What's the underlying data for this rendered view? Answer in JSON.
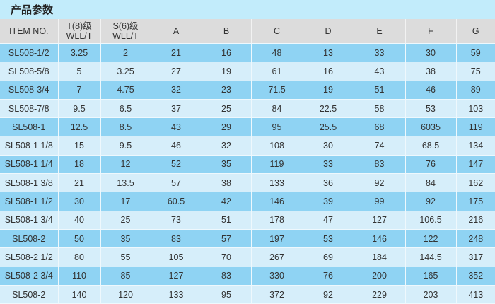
{
  "title": "产品参数",
  "colors": {
    "title_bg": "#c2ecfb",
    "header_bg": "#dcdcdc",
    "row_dark": "#8fd3f3",
    "row_light": "#d6eefa"
  },
  "table": {
    "headers": [
      [
        "ITEM NO."
      ],
      [
        "T(8)级",
        "WLL/T"
      ],
      [
        "S(6)级",
        "WLL/T"
      ],
      [
        "A"
      ],
      [
        "B"
      ],
      [
        "C"
      ],
      [
        "D"
      ],
      [
        "E"
      ],
      [
        "F"
      ],
      [
        "G"
      ]
    ],
    "rows": [
      [
        "SL508-1/2",
        "3.25",
        "2",
        "21",
        "16",
        "48",
        "13",
        "33",
        "30",
        "59"
      ],
      [
        "SL508-5/8",
        "5",
        "3.25",
        "27",
        "19",
        "61",
        "16",
        "43",
        "38",
        "75"
      ],
      [
        "SL508-3/4",
        "7",
        "4.75",
        "32",
        "23",
        "71.5",
        "19",
        "51",
        "46",
        "89"
      ],
      [
        "SL508-7/8",
        "9.5",
        "6.5",
        "37",
        "25",
        "84",
        "22.5",
        "58",
        "53",
        "103"
      ],
      [
        "SL508-1",
        "12.5",
        "8.5",
        "43",
        "29",
        "95",
        "25.5",
        "68",
        "6035",
        "119"
      ],
      [
        "SL508-1 1/8",
        "15",
        "9.5",
        "46",
        "32",
        "108",
        "30",
        "74",
        "68.5",
        "134"
      ],
      [
        "SL508-1 1/4",
        "18",
        "12",
        "52",
        "35",
        "119",
        "33",
        "83",
        "76",
        "147"
      ],
      [
        "SL508-1 3/8",
        "21",
        "13.5",
        "57",
        "38",
        "133",
        "36",
        "92",
        "84",
        "162"
      ],
      [
        "SL508-1 1/2",
        "30",
        "17",
        "60.5",
        "42",
        "146",
        "39",
        "99",
        "92",
        "175"
      ],
      [
        "SL508-1 3/4",
        "40",
        "25",
        "73",
        "51",
        "178",
        "47",
        "127",
        "106.5",
        "216"
      ],
      [
        "SL508-2",
        "50",
        "35",
        "83",
        "57",
        "197",
        "53",
        "146",
        "122",
        "248"
      ],
      [
        "SL508-2 1/2",
        "80",
        "55",
        "105",
        "70",
        "267",
        "69",
        "184",
        "144.5",
        "317"
      ],
      [
        "SL508-2 3/4",
        "110",
        "85",
        "127",
        "83",
        "330",
        "76",
        "200",
        "165",
        "352"
      ],
      [
        "SL508-2",
        "140",
        "120",
        "133",
        "95",
        "372",
        "92",
        "229",
        "203",
        "413"
      ]
    ]
  }
}
